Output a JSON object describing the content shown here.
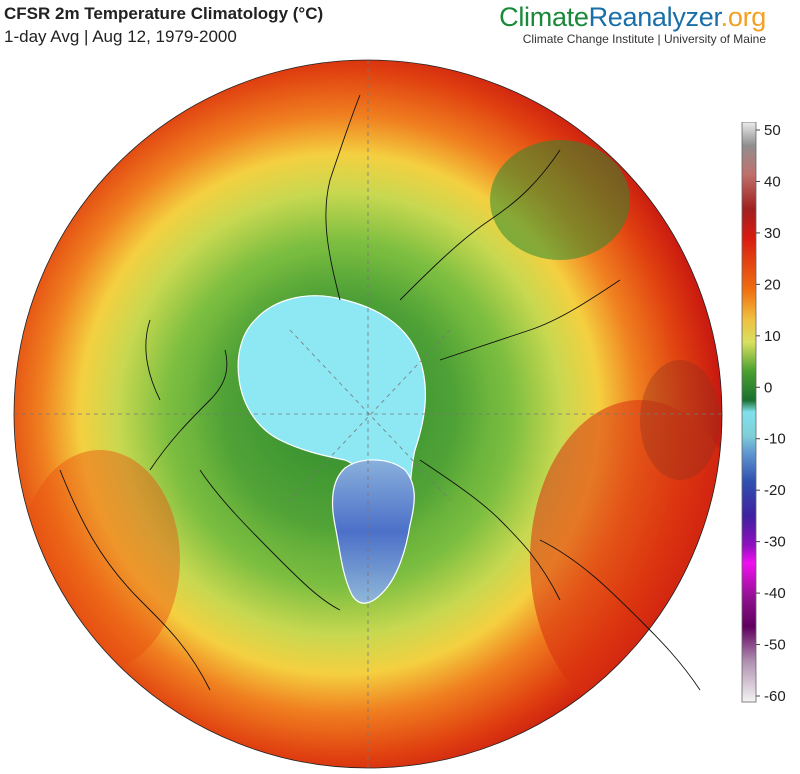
{
  "header": {
    "title": "CFSR 2m Temperature Climatology (°C)",
    "subtitle": "1-day Avg | Aug 12, 1979-2000"
  },
  "brand": {
    "part1": "Climate",
    "part2": "Reanalyzer",
    "part3": ".org",
    "affiliation": "Climate Change Institute | University of Maine"
  },
  "legend": {
    "ticks": [
      "50",
      "40",
      "30",
      "20",
      "10",
      "0",
      "-10",
      "-20",
      "-30",
      "-40",
      "-50",
      "-60"
    ],
    "colors": {
      "50": "#e8e8e8",
      "40": "#a04030",
      "30": "#c81810",
      "20": "#f07010",
      "15": "#d8e060",
      "10": "#4aa030",
      "0": "#80e0ec",
      "-10": "#5080d0",
      "-20": "#4030a0",
      "-30": "#e010e0",
      "-40": "#600060",
      "-50": "#a080a0",
      "-60": "#f0f0f0"
    }
  },
  "map_features": {
    "sea_ice": "#8ee8f4",
    "greenland": "#6688cc",
    "coast": "#111111"
  }
}
